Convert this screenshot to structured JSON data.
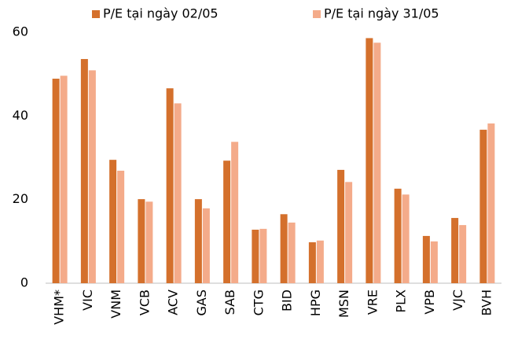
{
  "chart_data": {
    "type": "bar",
    "categories": [
      "VHM*",
      "VIC",
      "VNM",
      "VCB",
      "ACV",
      "GAS",
      "SAB",
      "CTG",
      "BID",
      "HPG",
      "MSN",
      "VRE",
      "PLX",
      "VPB",
      "VJC",
      "BVH"
    ],
    "series": [
      {
        "name": "P/E tại ngày 02/05",
        "color": "#d4702c",
        "values": [
          48.9,
          53.6,
          29.5,
          20.1,
          46.6,
          20.1,
          29.3,
          12.8,
          16.5,
          9.8,
          27.1,
          58.6,
          22.6,
          11.3,
          15.6,
          36.7
        ]
      },
      {
        "name": "P/E tại ngày 31/05",
        "color": "#f4ab8a",
        "values": [
          49.6,
          50.9,
          26.9,
          19.5,
          43.0,
          17.9,
          33.8,
          13.0,
          14.5,
          10.2,
          24.2,
          57.5,
          21.2,
          10.0,
          13.9,
          38.2
        ]
      }
    ],
    "ylim": [
      0,
      60
    ],
    "yticks": [
      0,
      20,
      40,
      60
    ],
    "grid": false,
    "legend": "top"
  }
}
